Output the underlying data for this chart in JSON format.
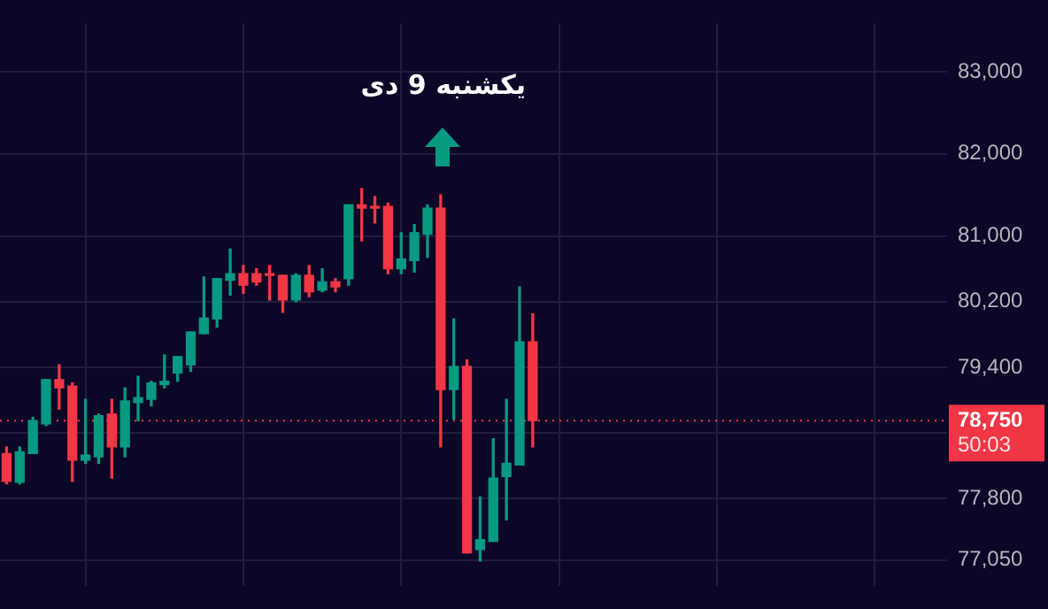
{
  "chart_data": {
    "type": "candlestick",
    "categories": [
      null,
      null,
      null,
      null,
      null,
      null,
      null,
      null,
      null,
      null,
      null,
      null,
      null,
      null,
      null,
      null,
      null,
      null,
      null,
      null,
      null,
      null,
      null,
      null,
      null,
      null,
      null,
      null,
      null,
      null,
      null,
      null,
      null,
      null,
      null,
      null,
      null,
      null,
      null,
      null,
      null,
      null,
      null,
      null,
      null,
      null,
      null,
      null,
      null,
      null,
      null,
      null,
      null,
      null,
      null,
      null,
      null,
      null,
      null,
      null,
      null,
      null,
      null,
      null,
      null,
      null,
      null,
      null,
      null,
      null,
      null,
      null
    ],
    "ohlc": [
      [
        78350,
        78430,
        77980,
        78010
      ],
      [
        78000,
        78430,
        77980,
        78370
      ],
      [
        78350,
        78790,
        78350,
        78750
      ],
      [
        78710,
        79250,
        78690,
        79250
      ],
      [
        79250,
        79430,
        78890,
        79150
      ],
      [
        79170,
        79210,
        78010,
        78270
      ],
      [
        78270,
        79010,
        78230,
        78330
      ],
      [
        78310,
        78830,
        78230,
        78810
      ],
      [
        78830,
        79010,
        78050,
        78430
      ],
      [
        78430,
        79150,
        78310,
        78990
      ],
      [
        78970,
        79290,
        78750,
        79030
      ],
      [
        79010,
        79230,
        78930,
        79210
      ],
      [
        79190,
        79550,
        79150,
        79230
      ],
      [
        79330,
        79530,
        79230,
        79530
      ],
      [
        79430,
        79830,
        79350,
        79830
      ],
      [
        79810,
        80500,
        79810,
        80000
      ],
      [
        79990,
        80480,
        79890,
        80480
      ],
      [
        80460,
        80840,
        80280,
        80540
      ],
      [
        80540,
        80640,
        80300,
        80400
      ],
      [
        80540,
        80600,
        80400,
        80440
      ],
      [
        80540,
        80640,
        80220,
        80520
      ],
      [
        80520,
        80520,
        80070,
        80220
      ],
      [
        80220,
        80540,
        80200,
        80520
      ],
      [
        80520,
        80640,
        80260,
        80320
      ],
      [
        80340,
        80600,
        80320,
        80440
      ],
      [
        80440,
        80480,
        80320,
        80380
      ],
      [
        80480,
        81380,
        80400,
        81380
      ],
      [
        81380,
        81580,
        80940,
        81340
      ],
      [
        81360,
        81480,
        81160,
        81340
      ],
      [
        81360,
        81400,
        80540,
        80600
      ],
      [
        80600,
        81040,
        80540,
        80720
      ],
      [
        80700,
        81140,
        80560,
        81040
      ],
      [
        81020,
        81380,
        80740,
        81340
      ],
      [
        81340,
        81500,
        78430,
        79130
      ],
      [
        79130,
        79990,
        78770,
        79410
      ],
      [
        79410,
        79490,
        77140,
        77140
      ],
      [
        77180,
        77820,
        77040,
        77300
      ],
      [
        77280,
        78530,
        77280,
        78050
      ],
      [
        78070,
        79010,
        77540,
        78230
      ],
      [
        78210,
        80380,
        78210,
        79710
      ],
      [
        79710,
        80050,
        78430,
        78750
      ],
      null,
      null,
      null,
      null,
      null,
      null,
      null,
      null,
      null,
      null,
      null,
      null,
      null,
      null,
      null,
      null,
      null,
      null,
      null,
      null,
      null,
      null,
      null,
      null,
      null,
      null,
      null,
      null,
      null,
      null,
      null
    ],
    "ylim": [
      76740,
      83590
    ],
    "yticks": [
      {
        "value": 77050,
        "label": "77,050"
      },
      {
        "value": 77800,
        "label": "77,800"
      },
      {
        "value": 78600,
        "label": null
      },
      {
        "value": 79400,
        "label": "79,400"
      },
      {
        "value": 80200,
        "label": "80,200"
      },
      {
        "value": 81000,
        "label": "81,000"
      },
      {
        "value": 82000,
        "label": "82,000"
      },
      {
        "value": 83000,
        "label": "83,000"
      }
    ],
    "tick_labels": "y",
    "grid": true,
    "legend": false,
    "ref_lines": [
      {
        "axis": "y",
        "value": 78750,
        "label": "78,750",
        "color": "#f23645",
        "line_style": "dotted"
      }
    ],
    "annotations": [
      "یکشنبه 9 دی",
      "50:03"
    ]
  }
}
